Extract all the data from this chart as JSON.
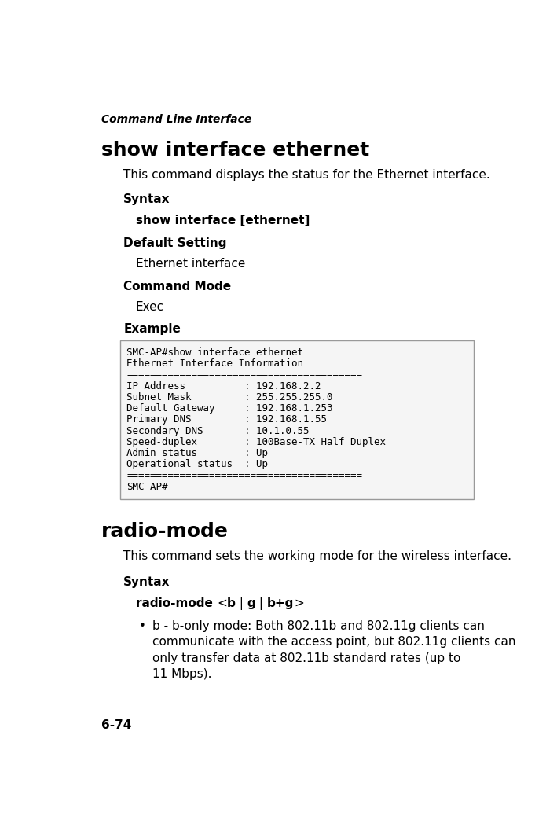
{
  "page_width": 7.0,
  "page_height": 10.52,
  "bg_color": "#ffffff",
  "header_italic": "Command Line Interface",
  "section1_title": "show interface ethernet",
  "section1_desc": "This command displays the status for the Ethernet interface.",
  "syntax_label": "Syntax",
  "syntax1_text": "show interface [ethernet]",
  "default_label": "Default Setting",
  "default_value": "Ethernet interface",
  "cmdmode_label": "Command Mode",
  "cmdmode_value": "Exec",
  "example_label": "Example",
  "code_box_lines": [
    "SMC-AP#show interface ethernet",
    "Ethernet Interface Information",
    "========================================",
    "IP Address          : 192.168.2.2",
    "Subnet Mask         : 255.255.255.0",
    "Default Gateway     : 192.168.1.253",
    "Primary DNS         : 192.168.1.55",
    "Secondary DNS       : 10.1.0.55",
    "Speed-duplex        : 100Base-TX Half Duplex",
    "Admin status        : Up",
    "Operational status  : Up",
    "========================================",
    "SMC-AP#"
  ],
  "section2_title": "radio-mode",
  "section2_desc": "This command sets the working mode for the wireless interface.",
  "syntax2_label": "Syntax",
  "bullet_text_lines": [
    "b - b-only mode: Both 802.11b and 802.11g clients can",
    "communicate with the access point, but 802.11g clients can",
    "only transfer data at 802.11b standard rates (up to",
    "11 Mbps)."
  ],
  "footer_text": "6-74",
  "lm": 0.53,
  "i1": 0.9,
  "i2": 1.1,
  "i3": 1.3,
  "code_bg": "#f5f5f5",
  "code_border": "#999999",
  "header_fontsize": 10,
  "title_fontsize": 18,
  "body_fontsize": 11,
  "label_fontsize": 11,
  "code_fontsize": 9,
  "footer_fontsize": 11
}
